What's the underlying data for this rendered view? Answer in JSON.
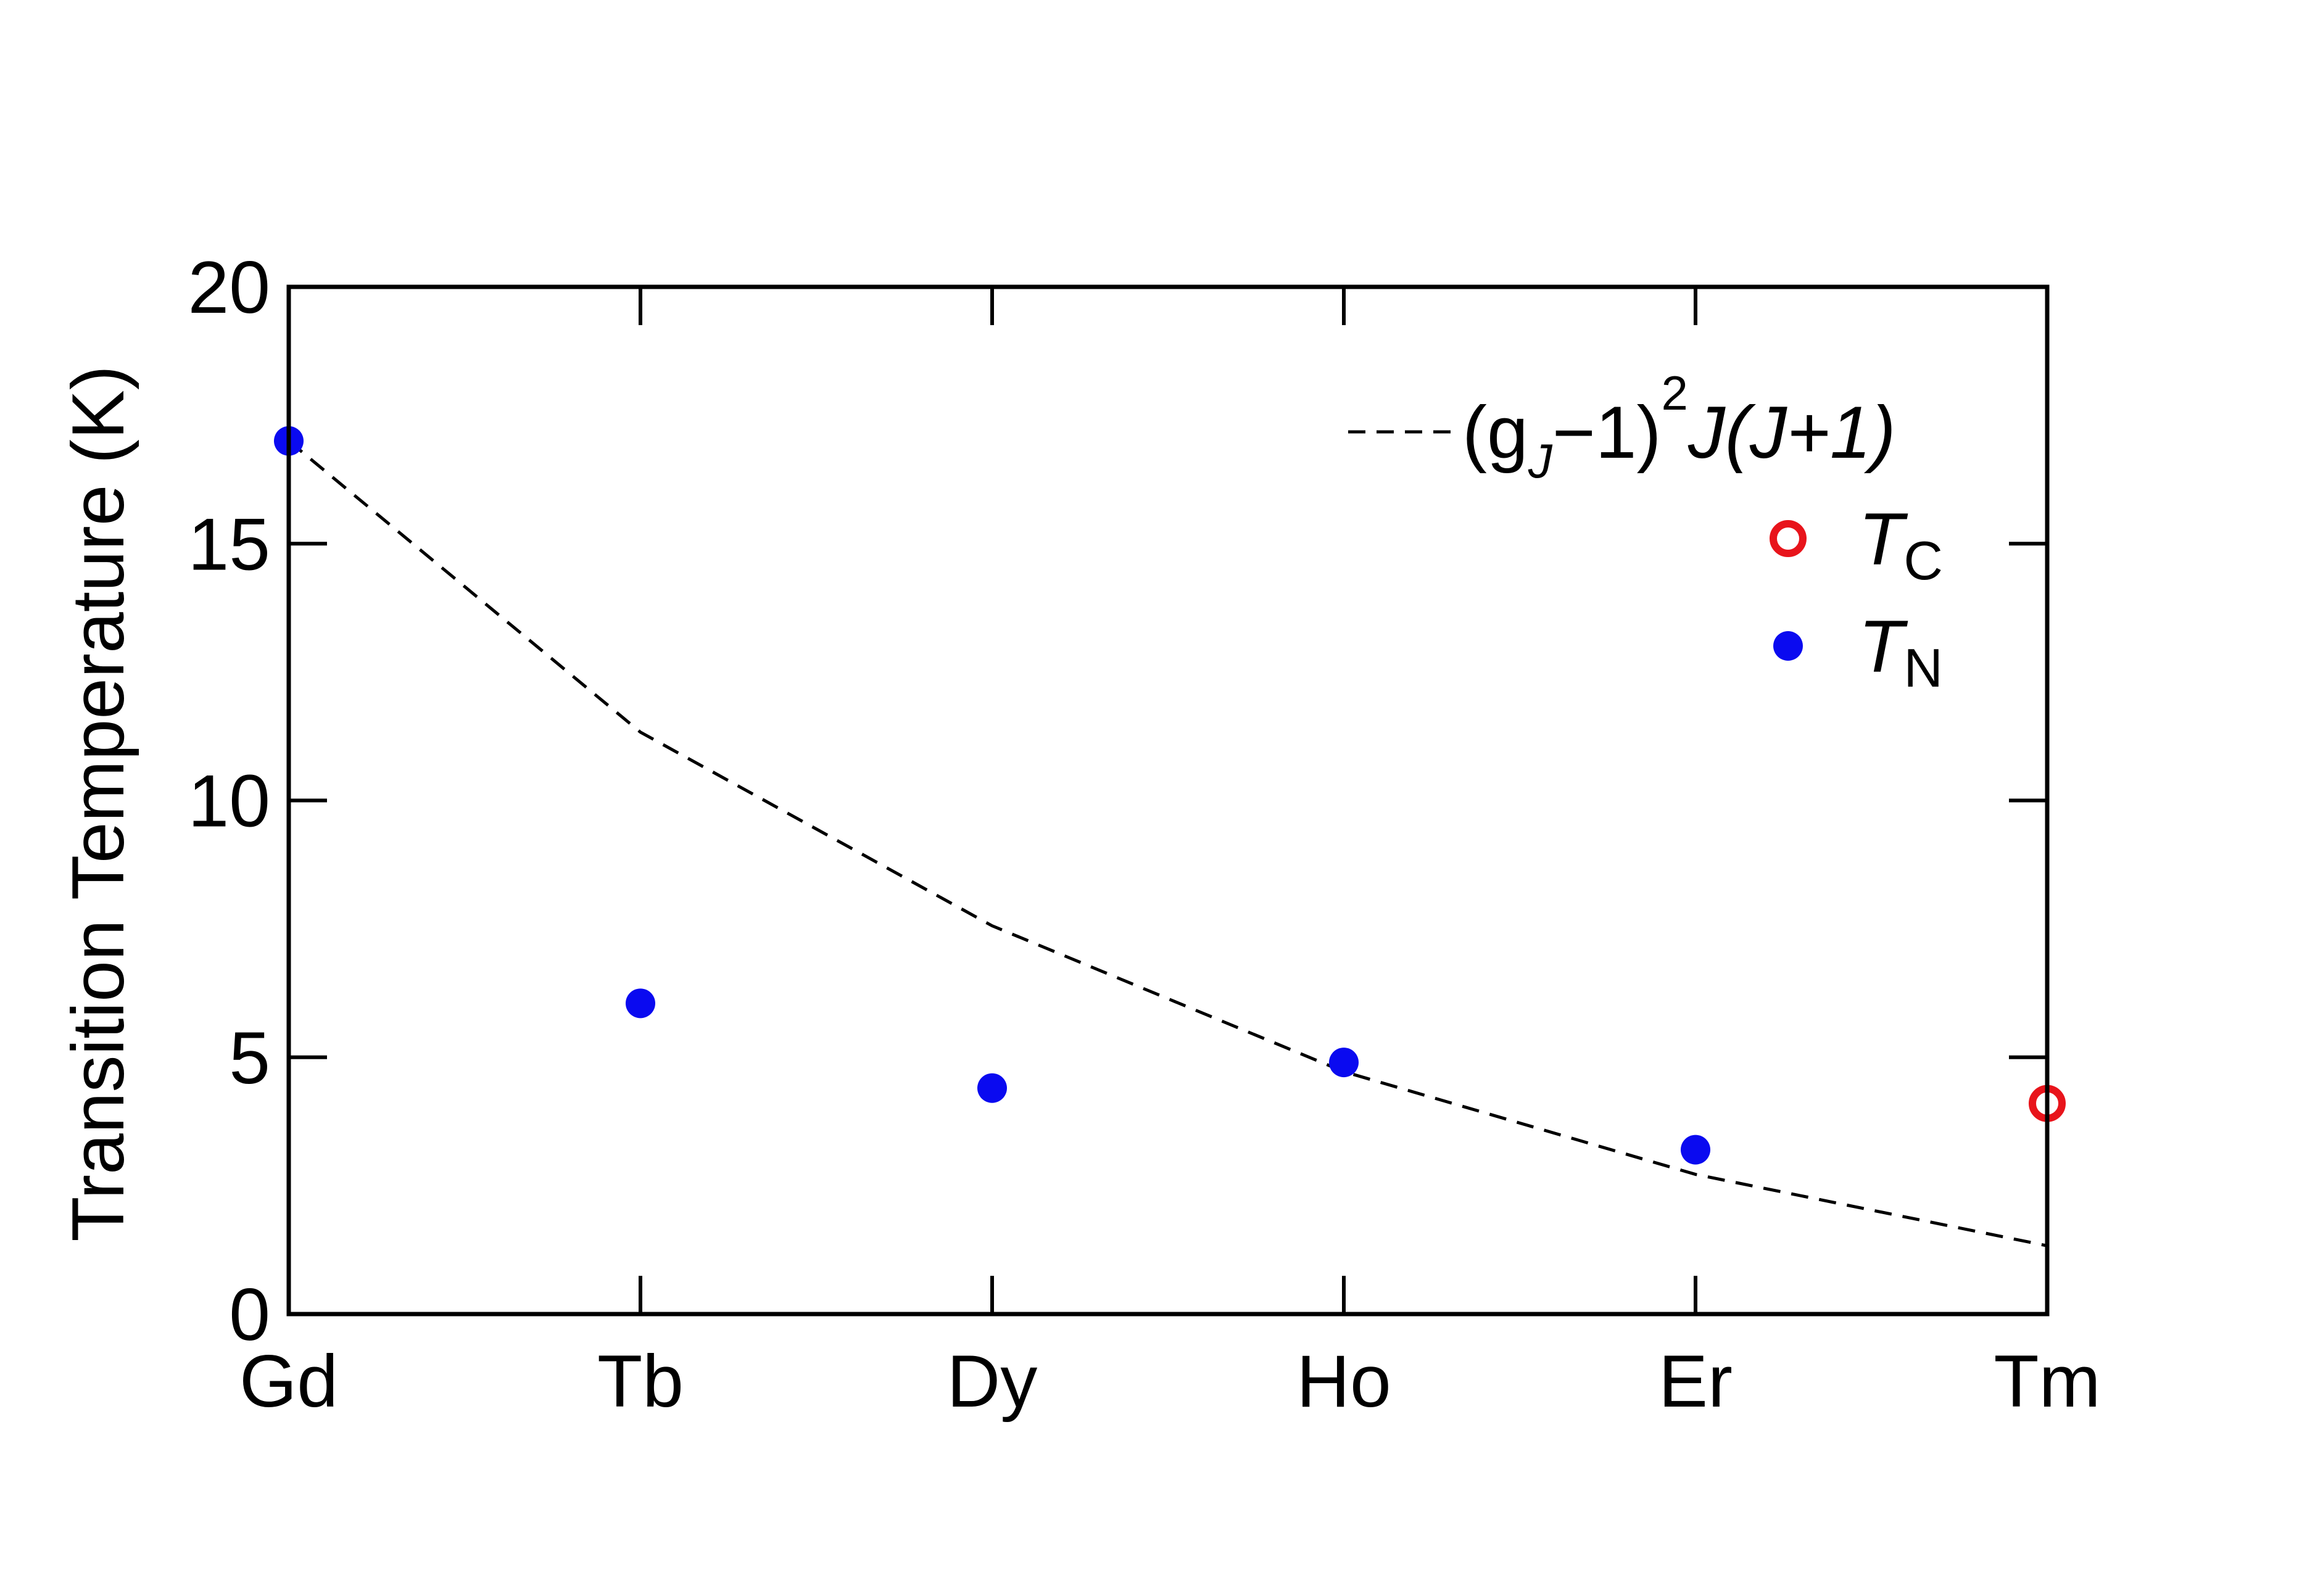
{
  "chart_data": {
    "type": "scatter",
    "ylabel": "Transition Temperature (K)",
    "categories": [
      "Gd",
      "Tb",
      "Dy",
      "Ho",
      "Er",
      "Tm"
    ],
    "ylim": [
      0,
      20
    ],
    "yticks": [
      0,
      5,
      10,
      15,
      20
    ],
    "grid": false,
    "legend_position": "top-right",
    "legend": {
      "curve": {
        "parts": [
          "(g",
          "J",
          "−1)",
          "2",
          "J(J+1)"
        ]
      },
      "tc": {
        "symbol": "T",
        "subscript": "C"
      },
      "tn": {
        "symbol": "T",
        "subscript": "N"
      }
    },
    "series": [
      {
        "key": "curve",
        "style": "dashed-line",
        "color": "#000000",
        "values": [
          17.0,
          11.33,
          7.56,
          4.72,
          2.72,
          1.33
        ]
      },
      {
        "key": "tc",
        "style": "open-circle",
        "color": "#e8141b",
        "points": [
          {
            "category": "Tm",
            "y": 4.1
          }
        ]
      },
      {
        "key": "tn",
        "style": "filled-circle",
        "color": "#0a0af0",
        "points": [
          {
            "category": "Gd",
            "y": 17.0
          },
          {
            "category": "Tb",
            "y": 6.05
          },
          {
            "category": "Dy",
            "y": 4.4
          },
          {
            "category": "Ho",
            "y": 4.9
          },
          {
            "category": "Er",
            "y": 3.2
          }
        ]
      }
    ]
  }
}
